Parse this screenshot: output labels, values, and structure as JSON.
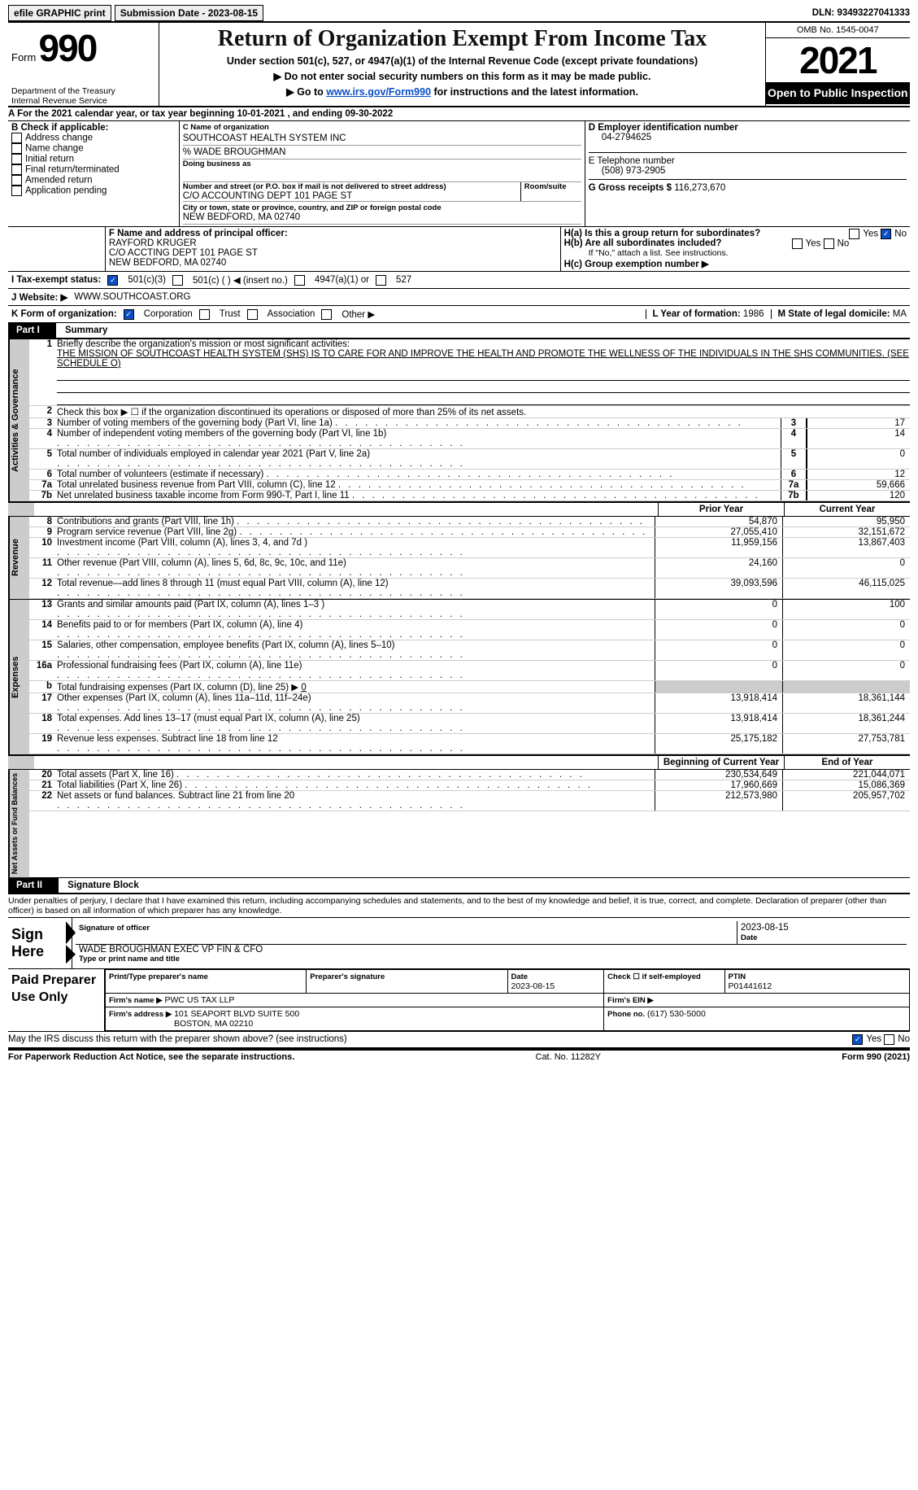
{
  "topbar": {
    "efile": "efile GRAPHIC print",
    "sub_label": "Submission Date - 2023-08-15",
    "dln": "DLN: 93493227041333"
  },
  "header": {
    "form_word": "Form",
    "form_no": "990",
    "dept": "Department of the Treasury",
    "irs": "Internal Revenue Service",
    "title": "Return of Organization Exempt From Income Tax",
    "sub1": "Under section 501(c), 527, or 4947(a)(1) of the Internal Revenue Code (except private foundations)",
    "sub2": "Do not enter social security numbers on this form as it may be made public.",
    "sub3_pre": "Go to ",
    "sub3_link": "www.irs.gov/Form990",
    "sub3_post": " for instructions and the latest information.",
    "omb": "OMB No. 1545-0047",
    "year": "2021",
    "inspect": "Open to Public Inspection"
  },
  "A": {
    "text_pre": "A For the 2021 calendar year, or tax year beginning ",
    "begin": "10-01-2021",
    "mid": " , and ending ",
    "end": "09-30-2022"
  },
  "B": {
    "label": "B Check if applicable:",
    "opts": [
      "Address change",
      "Name change",
      "Initial return",
      "Final return/terminated",
      "Amended return",
      "Application pending"
    ]
  },
  "C": {
    "name_label": "C Name of organization",
    "name": "SOUTHCOAST HEALTH SYSTEM INC",
    "care_of": "% WADE BROUGHMAN",
    "dba_label": "Doing business as",
    "addr_label": "Number and street (or P.O. box if mail is not delivered to street address)",
    "room_label": "Room/suite",
    "addr": "C/O ACCOUNTING DEPT 101 PAGE ST",
    "city_label": "City or town, state or province, country, and ZIP or foreign postal code",
    "city": "NEW BEDFORD, MA  02740"
  },
  "D": {
    "label": "D Employer identification number",
    "val": "04-2794625"
  },
  "E": {
    "label": "E Telephone number",
    "val": "(508) 973-2905"
  },
  "G": {
    "label": "G Gross receipts $",
    "val": "116,273,670"
  },
  "F": {
    "label": "F  Name and address of principal officer:",
    "name": "RAYFORD KRUGER",
    "addr": "C/O ACCTING DEPT 101 PAGE ST",
    "city": "NEW BEDFORD, MA  02740"
  },
  "H": {
    "a": "H(a)  Is this a group return for subordinates?",
    "b": "H(b)  Are all subordinates included?",
    "b_note": "If \"No,\" attach a list. See instructions.",
    "c": "H(c)  Group exemption number ▶"
  },
  "I": {
    "label": "I  Tax-exempt status:",
    "c3": "501(c)(3)",
    "c": "501(c) (  ) ◀ (insert no.)",
    "a1": "4947(a)(1) or",
    "s527": "527"
  },
  "J": {
    "label": "J  Website: ▶",
    "val": "WWW.SOUTHCOAST.ORG"
  },
  "K": {
    "label": "K Form of organization:",
    "corp": "Corporation",
    "trust": "Trust",
    "assoc": "Association",
    "other": "Other ▶"
  },
  "L": {
    "label": "L Year of formation:",
    "val": "1986"
  },
  "M": {
    "label": "M State of legal domicile:",
    "val": "MA"
  },
  "partI": {
    "hdr": "Part I",
    "title": "Summary"
  },
  "mission": {
    "label": "Briefly describe the organization's mission or most significant activities:",
    "text": "THE MISSION OF SOUTHCOAST HEALTH SYSTEM (SHS) IS TO CARE FOR AND IMPROVE THE HEALTH AND PROMOTE THE WELLNESS OF THE INDIVIDUALS IN THE SHS COMMUNITIES. (SEE SCHEDULE O)"
  },
  "line2": "Check this box ▶ ☐ if the organization discontinued its operations or disposed of more than 25% of its net assets.",
  "gov_lines": [
    {
      "n": "3",
      "d": "Number of voting members of the governing body (Part VI, line 1a)",
      "v": "17"
    },
    {
      "n": "4",
      "d": "Number of independent voting members of the governing body (Part VI, line 1b)",
      "v": "14"
    },
    {
      "n": "5",
      "d": "Total number of individuals employed in calendar year 2021 (Part V, line 2a)",
      "v": "0"
    },
    {
      "n": "6",
      "d": "Total number of volunteers (estimate if necessary)",
      "v": "12"
    },
    {
      "n": "7a",
      "d": "Total unrelated business revenue from Part VIII, column (C), line 12",
      "v": "59,666"
    },
    {
      "n": "7b",
      "d": "Net unrelated business taxable income from Form 990-T, Part I, line 11",
      "v": "120"
    }
  ],
  "prior_hdr": "Prior Year",
  "curr_hdr": "Current Year",
  "rev_lines": [
    {
      "n": "8",
      "d": "Contributions and grants (Part VIII, line 1h)",
      "p": "54,870",
      "c": "95,950"
    },
    {
      "n": "9",
      "d": "Program service revenue (Part VIII, line 2g)",
      "p": "27,055,410",
      "c": "32,151,672"
    },
    {
      "n": "10",
      "d": "Investment income (Part VIII, column (A), lines 3, 4, and 7d )",
      "p": "11,959,156",
      "c": "13,867,403"
    },
    {
      "n": "11",
      "d": "Other revenue (Part VIII, column (A), lines 5, 6d, 8c, 9c, 10c, and 11e)",
      "p": "24,160",
      "c": "0"
    },
    {
      "n": "12",
      "d": "Total revenue—add lines 8 through 11 (must equal Part VIII, column (A), line 12)",
      "p": "39,093,596",
      "c": "46,115,025"
    }
  ],
  "exp_lines": [
    {
      "n": "13",
      "d": "Grants and similar amounts paid (Part IX, column (A), lines 1–3 )",
      "p": "0",
      "c": "100"
    },
    {
      "n": "14",
      "d": "Benefits paid to or for members (Part IX, column (A), line 4)",
      "p": "0",
      "c": "0"
    },
    {
      "n": "15",
      "d": "Salaries, other compensation, employee benefits (Part IX, column (A), lines 5–10)",
      "p": "0",
      "c": "0"
    },
    {
      "n": "16a",
      "d": "Professional fundraising fees (Part IX, column (A), line 11e)",
      "p": "0",
      "c": "0"
    }
  ],
  "line16b": {
    "d": "Total fundraising expenses (Part IX, column (D), line 25) ▶",
    "v": "0"
  },
  "exp_lines2": [
    {
      "n": "17",
      "d": "Other expenses (Part IX, column (A), lines 11a–11d, 11f–24e)",
      "p": "13,918,414",
      "c": "18,361,144"
    },
    {
      "n": "18",
      "d": "Total expenses. Add lines 13–17 (must equal Part IX, column (A), line 25)",
      "p": "13,918,414",
      "c": "18,361,244"
    },
    {
      "n": "19",
      "d": "Revenue less expenses. Subtract line 18 from line 12",
      "p": "25,175,182",
      "c": "27,753,781"
    }
  ],
  "na_hdr_prior": "Beginning of Current Year",
  "na_hdr_curr": "End of Year",
  "na_lines": [
    {
      "n": "20",
      "d": "Total assets (Part X, line 16)",
      "p": "230,534,649",
      "c": "221,044,071"
    },
    {
      "n": "21",
      "d": "Total liabilities (Part X, line 26)",
      "p": "17,960,669",
      "c": "15,086,369"
    },
    {
      "n": "22",
      "d": "Net assets or fund balances. Subtract line 21 from line 20",
      "p": "212,573,980",
      "c": "205,957,702"
    }
  ],
  "partII": {
    "hdr": "Part II",
    "title": "Signature Block"
  },
  "penalties": "Under penalties of perjury, I declare that I have examined this return, including accompanying schedules and statements, and to the best of my knowledge and belief, it is true, correct, and complete. Declaration of preparer (other than officer) is based on all information of which preparer has any knowledge.",
  "sign": {
    "label": "Sign Here",
    "sig_of": "Signature of officer",
    "date": "2023-08-15",
    "name_title": "WADE BROUGHMAN  EXEC VP FIN & CFO",
    "type_print": "Type or print name and title"
  },
  "paid": {
    "label": "Paid Preparer Use Only",
    "print_name": "Print/Type preparer's name",
    "prep_sig": "Preparer's signature",
    "date_lbl": "Date",
    "date": "2023-08-15",
    "check_lbl": "Check ☐ if self-employed",
    "ptin_lbl": "PTIN",
    "ptin": "P01441612",
    "firm_name_lbl": "Firm's name    ▶",
    "firm_name": "PWC US TAX LLP",
    "firm_ein_lbl": "Firm's EIN ▶",
    "firm_addr_lbl": "Firm's address ▶",
    "firm_addr": "101 SEAPORT BLVD SUITE 500",
    "firm_city": "BOSTON, MA  02210",
    "phone_lbl": "Phone no.",
    "phone": "(617) 530-5000"
  },
  "may_discuss": "May the IRS discuss this return with the preparer shown above? (see instructions)",
  "footer": {
    "left": "For Paperwork Reduction Act Notice, see the separate instructions.",
    "mid": "Cat. No. 11282Y",
    "right": "Form 990 (2021)"
  },
  "yes": "Yes",
  "no": "No",
  "vtabs": {
    "gov": "Activities & Governance",
    "rev": "Revenue",
    "exp": "Expenses",
    "na": "Net Assets or Fund Balances"
  }
}
